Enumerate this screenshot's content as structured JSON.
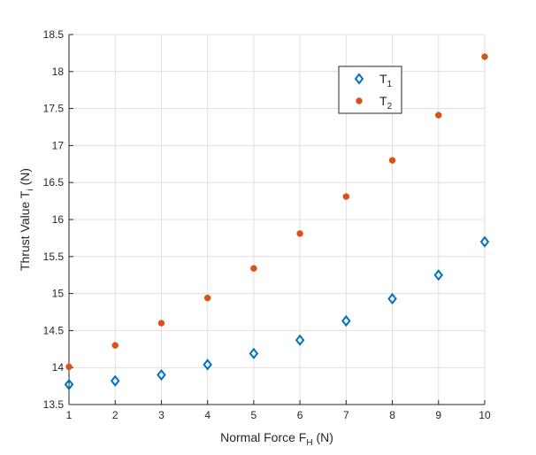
{
  "chart_data": {
    "type": "scatter",
    "x": [
      1,
      2,
      3,
      4,
      5,
      6,
      7,
      8,
      9,
      10
    ],
    "series": [
      {
        "name": "T",
        "subscript": "1",
        "marker": "diamond",
        "color": "#0072bd",
        "values": [
          13.77,
          13.82,
          13.9,
          14.04,
          14.19,
          14.37,
          14.63,
          14.93,
          15.25,
          15.7
        ]
      },
      {
        "name": "T",
        "subscript": "2",
        "marker": "circle",
        "color": "#d95319",
        "values": [
          14.01,
          14.3,
          14.6,
          14.94,
          15.34,
          15.81,
          16.31,
          16.8,
          17.41,
          18.2
        ]
      }
    ],
    "xlabel": "Normal Force F",
    "xlabel_subscript": "H",
    "xlabel_unit": " (N)",
    "ylabel": "Thrust Value T",
    "ylabel_subscript": "i",
    "ylabel_unit": " (N)",
    "xlim": [
      1,
      10
    ],
    "ylim": [
      13.5,
      18.5
    ],
    "xticks": [
      1,
      2,
      3,
      4,
      5,
      6,
      7,
      8,
      9,
      10
    ],
    "yticks": [
      13.5,
      14,
      14.5,
      15,
      15.5,
      16,
      16.5,
      17,
      17.5,
      18,
      18.5
    ],
    "grid": true,
    "legend_position": "top-right-inside"
  }
}
